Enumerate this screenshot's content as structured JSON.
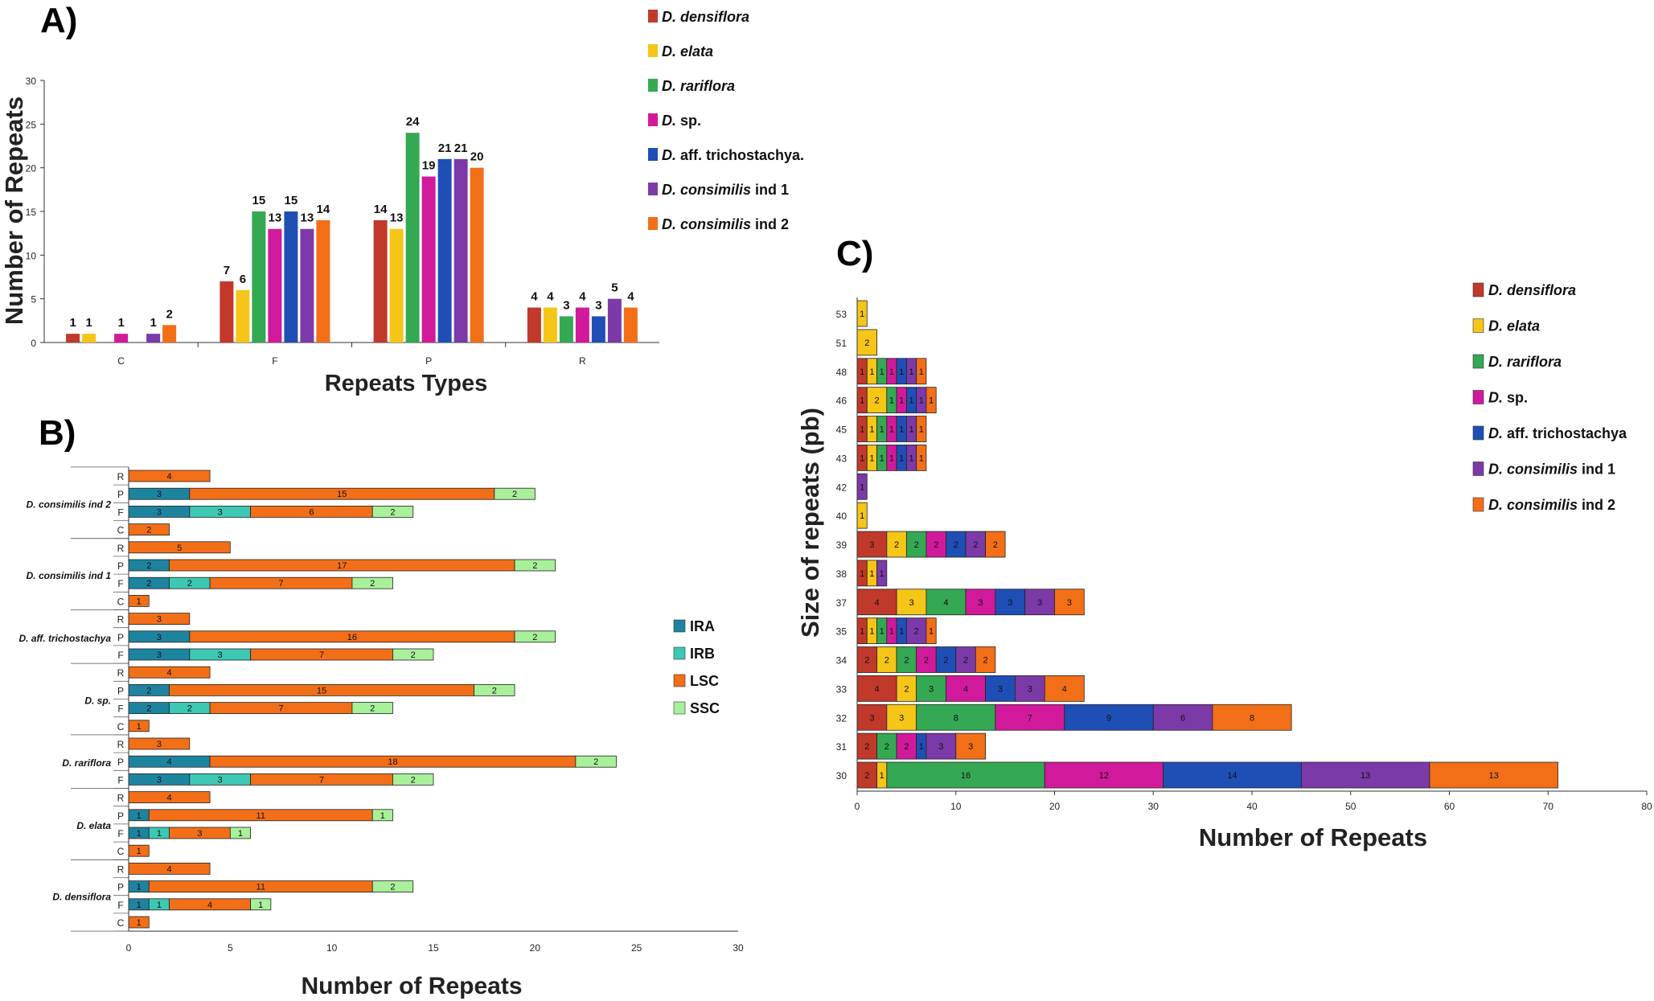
{
  "colors": {
    "D_densiflora": "#c0392b",
    "D_elata": "#f5c518",
    "D_rariflora": "#35a853",
    "D_sp": "#d11a9b",
    "D_aff_trichostachya": "#1f4fb5",
    "D_consimilis_ind1": "#7b3aa8",
    "D_consimilis_ind2": "#f26f18",
    "IRA": "#1d84a0",
    "IRB": "#3cc8b4",
    "LSC": "#f26f18",
    "SSC": "#a8f09a"
  },
  "chart_data": [
    {
      "id": "A",
      "panel_label": "A)",
      "type": "bar",
      "title": "",
      "xlabel": "Repeats Types",
      "ylabel": "Number of Repeats",
      "ylim": [
        0,
        30
      ],
      "yticks": [
        "0",
        "5",
        "10",
        "15",
        "20",
        "25",
        "30"
      ],
      "categories": [
        "C",
        "F",
        "P",
        "R"
      ],
      "series": [
        {
          "name": "D. densiflora",
          "key": "D_densiflora",
          "values": [
            1,
            7,
            14,
            4
          ]
        },
        {
          "name": "D. elata",
          "key": "D_elata",
          "values": [
            1,
            6,
            13,
            4
          ]
        },
        {
          "name": "D. rariflora",
          "key": "D_rariflora",
          "values": [
            0,
            15,
            24,
            3
          ]
        },
        {
          "name": "D. sp.",
          "key": "D_sp",
          "values": [
            1,
            13,
            19,
            4
          ]
        },
        {
          "name": "D. aff. trichostachya",
          "key": "D_aff_trichostachya",
          "values": [
            0,
            15,
            21,
            3
          ]
        },
        {
          "name": "D. consimilis ind 1",
          "key": "D_consimilis_ind1",
          "values": [
            1,
            13,
            21,
            5
          ]
        },
        {
          "name": "D. consimilis ind 2",
          "key": "D_consimilis_ind2",
          "values": [
            2,
            14,
            20,
            4
          ]
        }
      ],
      "legend": [
        {
          "italic": "D. densiflora",
          "rest": "",
          "key": "D_densiflora"
        },
        {
          "italic": "D. elata",
          "rest": "",
          "key": "D_elata"
        },
        {
          "italic": "D. rariflora",
          "rest": "",
          "key": "D_rariflora"
        },
        {
          "italic": "D.",
          "rest": " sp.",
          "key": "D_sp"
        },
        {
          "italic": "D.",
          "rest": " aff. trichostachya.",
          "key": "D_aff_trichostachya"
        },
        {
          "italic": "D. consimilis",
          "rest": " ind 1",
          "key": "D_consimilis_ind1"
        },
        {
          "italic": "D. consimilis",
          "rest": " ind 2",
          "key": "D_consimilis_ind2"
        }
      ]
    },
    {
      "id": "B",
      "panel_label": "B)",
      "type": "bar",
      "orientation": "horizontal-stacked",
      "xlabel": "Number of Repeats",
      "xlim": [
        0,
        30
      ],
      "xticks": [
        "0",
        "5",
        "10",
        "15",
        "20",
        "25",
        "30"
      ],
      "stack_series": [
        "IRA",
        "IRB",
        "LSC",
        "SSC"
      ],
      "groups": [
        {
          "name": "D. consimilis ind 2",
          "rows": [
            {
              "type": "R",
              "values": [
                0,
                0,
                4,
                0
              ]
            },
            {
              "type": "P",
              "values": [
                3,
                0,
                15,
                2
              ]
            },
            {
              "type": "F",
              "values": [
                3,
                3,
                6,
                2
              ]
            },
            {
              "type": "C",
              "values": [
                0,
                0,
                2,
                0
              ]
            }
          ]
        },
        {
          "name": "D. consimilis ind 1",
          "rows": [
            {
              "type": "R",
              "values": [
                0,
                0,
                5,
                0
              ]
            },
            {
              "type": "P",
              "values": [
                2,
                0,
                17,
                2
              ]
            },
            {
              "type": "F",
              "values": [
                2,
                2,
                7,
                2
              ]
            },
            {
              "type": "C",
              "values": [
                0,
                0,
                1,
                0
              ]
            }
          ]
        },
        {
          "name": "D. aff. trichostachya",
          "rows": [
            {
              "type": "R",
              "values": [
                0,
                0,
                3,
                0
              ]
            },
            {
              "type": "P",
              "values": [
                3,
                0,
                16,
                2
              ]
            },
            {
              "type": "F",
              "values": [
                3,
                3,
                7,
                2
              ]
            }
          ]
        },
        {
          "name": "D. sp.",
          "rows": [
            {
              "type": "R",
              "values": [
                0,
                0,
                4,
                0
              ]
            },
            {
              "type": "P",
              "values": [
                2,
                0,
                15,
                2
              ]
            },
            {
              "type": "F",
              "values": [
                2,
                2,
                7,
                2
              ]
            },
            {
              "type": "C",
              "values": [
                0,
                0,
                1,
                0
              ]
            }
          ]
        },
        {
          "name": "D. rariflora",
          "rows": [
            {
              "type": "R",
              "values": [
                0,
                0,
                3,
                0
              ]
            },
            {
              "type": "P",
              "values": [
                4,
                0,
                18,
                2
              ]
            },
            {
              "type": "F",
              "values": [
                3,
                3,
                7,
                2
              ]
            }
          ]
        },
        {
          "name": "D. elata",
          "rows": [
            {
              "type": "R",
              "values": [
                0,
                0,
                4,
                0
              ]
            },
            {
              "type": "P",
              "values": [
                1,
                0,
                11,
                1
              ]
            },
            {
              "type": "F",
              "values": [
                1,
                1,
                3,
                1
              ]
            },
            {
              "type": "C",
              "values": [
                0,
                0,
                1,
                0
              ]
            }
          ]
        },
        {
          "name": "D. densiflora",
          "rows": [
            {
              "type": "R",
              "values": [
                0,
                0,
                4,
                0
              ]
            },
            {
              "type": "P",
              "values": [
                1,
                0,
                11,
                2
              ]
            },
            {
              "type": "F",
              "values": [
                1,
                1,
                4,
                1
              ]
            },
            {
              "type": "C",
              "values": [
                0,
                0,
                1,
                0
              ]
            }
          ]
        }
      ],
      "legend": [
        "IRA",
        "IRB",
        "LSC",
        "SSC"
      ]
    },
    {
      "id": "C",
      "panel_label": "C)",
      "type": "bar",
      "orientation": "horizontal-stacked",
      "xlabel": "Number of Repeats",
      "ylabel": "Size of repeats (pb)",
      "xlim": [
        0,
        80
      ],
      "xticks": [
        "0",
        "10",
        "20",
        "30",
        "40",
        "50",
        "60",
        "70",
        "80"
      ],
      "series_keys": [
        "D_densiflora",
        "D_elata",
        "D_rariflora",
        "D_sp",
        "D_aff_trichostachya",
        "D_consimilis_ind1",
        "D_consimilis_ind2"
      ],
      "rows": [
        {
          "size": "53",
          "values": [
            0,
            1,
            0,
            0,
            0,
            0,
            0
          ]
        },
        {
          "size": "51",
          "values": [
            0,
            2,
            0,
            0,
            0,
            0,
            0
          ]
        },
        {
          "size": "48",
          "values": [
            1,
            1,
            1,
            1,
            1,
            1,
            1
          ]
        },
        {
          "size": "46",
          "values": [
            1,
            2,
            1,
            1,
            1,
            1,
            1
          ]
        },
        {
          "size": "45",
          "values": [
            1,
            1,
            1,
            1,
            1,
            1,
            1
          ]
        },
        {
          "size": "43",
          "values": [
            1,
            1,
            1,
            1,
            1,
            1,
            1
          ]
        },
        {
          "size": "42",
          "values": [
            0,
            0,
            0,
            0,
            0,
            1,
            0
          ]
        },
        {
          "size": "40",
          "values": [
            0,
            1,
            0,
            0,
            0,
            0,
            0
          ]
        },
        {
          "size": "39",
          "values": [
            3,
            2,
            2,
            2,
            2,
            2,
            2
          ]
        },
        {
          "size": "38",
          "values": [
            1,
            1,
            0,
            0,
            0,
            1,
            0
          ]
        },
        {
          "size": "37",
          "values": [
            4,
            3,
            4,
            3,
            3,
            3,
            3
          ]
        },
        {
          "size": "35",
          "values": [
            1,
            1,
            1,
            1,
            1,
            2,
            1
          ]
        },
        {
          "size": "34",
          "values": [
            2,
            2,
            2,
            2,
            2,
            2,
            2
          ]
        },
        {
          "size": "33",
          "values": [
            4,
            2,
            3,
            4,
            3,
            3,
            4
          ]
        },
        {
          "size": "32",
          "values": [
            3,
            3,
            8,
            7,
            9,
            6,
            8
          ]
        },
        {
          "size": "31",
          "values": [
            2,
            0,
            2,
            2,
            1,
            3,
            3
          ]
        },
        {
          "size": "30",
          "values": [
            2,
            1,
            16,
            12,
            14,
            13,
            13
          ]
        }
      ],
      "legend": [
        {
          "italic": "D. densiflora",
          "rest": "",
          "key": "D_densiflora"
        },
        {
          "italic": "D. elata",
          "rest": "",
          "key": "D_elata"
        },
        {
          "italic": "D. rariflora",
          "rest": "",
          "key": "D_rariflora"
        },
        {
          "italic": "D.",
          "rest": " sp.",
          "key": "D_sp"
        },
        {
          "italic": "D.",
          "rest": " aff. trichostachya",
          "key": "D_aff_trichostachya"
        },
        {
          "italic": "D. consimilis",
          "rest": " ind 1",
          "key": "D_consimilis_ind1"
        },
        {
          "italic": "D. consimilis",
          "rest": " ind 2",
          "key": "D_consimilis_ind2"
        }
      ]
    }
  ]
}
